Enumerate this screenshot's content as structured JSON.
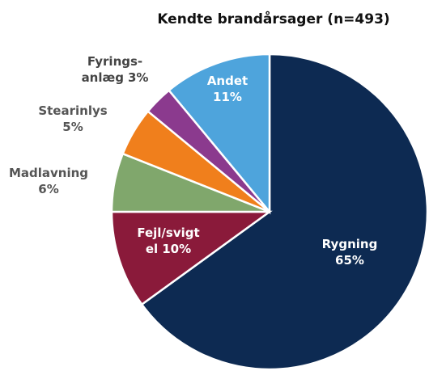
{
  "chart_data": {
    "type": "pie",
    "title": "Kendte brandårsager (n=493)",
    "categories": [
      [
        "Rygning"
      ],
      [
        "Fejl/svigt",
        "el"
      ],
      [
        "Madlavning"
      ],
      [
        "Stearinlys"
      ],
      [
        "Fyrings-",
        "anlæg"
      ],
      [
        "Andet"
      ]
    ],
    "values": [
      65,
      10,
      6,
      5,
      3,
      11
    ],
    "value_labels": [
      "65%",
      "10%",
      "6%",
      "5%",
      "3%",
      "11%"
    ],
    "colors": [
      "#0d2a52",
      "#8a1a3a",
      "#80a76c",
      "#f07f1c",
      "#8b3a8e",
      "#4ea4dc"
    ]
  }
}
